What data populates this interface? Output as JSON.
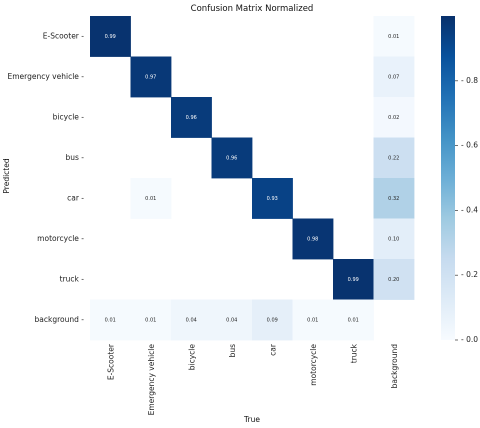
{
  "chart_data": {
    "type": "heatmap",
    "title": "Confusion Matrix Normalized",
    "xlabel": "True",
    "ylabel": "Predicted",
    "rows": [
      "E-Scooter",
      "Emergency vehicle",
      "bicycle",
      "bus",
      "car",
      "motorcycle",
      "truck",
      "background"
    ],
    "columns": [
      "E-Scooter",
      "Emergency vehicle",
      "bicycle",
      "bus",
      "car",
      "motorcycle",
      "truck",
      "background"
    ],
    "values": [
      [
        0.99,
        null,
        null,
        null,
        null,
        null,
        null,
        0.01
      ],
      [
        null,
        0.97,
        null,
        null,
        null,
        null,
        null,
        0.07
      ],
      [
        null,
        null,
        0.96,
        null,
        null,
        null,
        null,
        0.02
      ],
      [
        null,
        null,
        null,
        0.96,
        null,
        null,
        null,
        0.22
      ],
      [
        null,
        0.01,
        null,
        null,
        0.93,
        null,
        null,
        0.32
      ],
      [
        null,
        null,
        null,
        null,
        null,
        0.98,
        null,
        0.1
      ],
      [
        null,
        null,
        null,
        null,
        null,
        null,
        0.99,
        0.2
      ],
      [
        0.01,
        0.01,
        0.04,
        0.04,
        0.09,
        0.01,
        0.01,
        null
      ]
    ],
    "value_labels": [
      [
        "0.99",
        "",
        "",
        "",
        "",
        "",
        "",
        "0.01"
      ],
      [
        "",
        "0.97",
        "",
        "",
        "",
        "",
        "",
        "0.07"
      ],
      [
        "",
        "",
        "0.96",
        "",
        "",
        "",
        "",
        "0.02"
      ],
      [
        "",
        "",
        "",
        "0.96",
        "",
        "",
        "",
        "0.22"
      ],
      [
        "",
        "0.01",
        "",
        "",
        "0.93",
        "",
        "",
        "0.32"
      ],
      [
        "",
        "",
        "",
        "",
        "",
        "0.98",
        "",
        "0.10"
      ],
      [
        "",
        "",
        "",
        "",
        "",
        "",
        "0.99",
        "0.20"
      ],
      [
        "0.01",
        "0.01",
        "0.04",
        "0.04",
        "0.09",
        "0.01",
        "0.01",
        ""
      ]
    ],
    "colorbar": {
      "range": [
        0.0,
        1.0
      ],
      "ticks": [
        0.0,
        0.2,
        0.4,
        0.6,
        0.8
      ],
      "tick_labels": [
        "0.0",
        "0.2",
        "0.4",
        "0.6",
        "0.8"
      ],
      "colormap": "Blues",
      "low_color": "#f7fbff",
      "high_color": "#08306b"
    }
  }
}
